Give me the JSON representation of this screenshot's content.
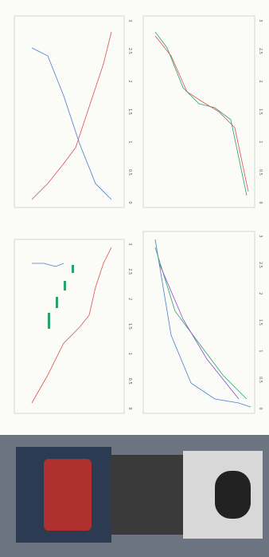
{
  "panels": [
    {
      "ticks": [
        "0",
        "0.5",
        "1",
        "1.5",
        "2",
        "2.5",
        "3"
      ]
    },
    {
      "ticks": [
        "0",
        "0.5",
        "1",
        "1.5",
        "2",
        "2.5",
        "3"
      ]
    },
    {
      "ticks": [
        "0",
        "0.5",
        "1",
        "1.5",
        "2",
        "2.5",
        "3"
      ]
    },
    {
      "ticks": [
        "0",
        "0.5",
        "1",
        "1.5",
        "2",
        "2.5",
        "3"
      ]
    }
  ]
}
